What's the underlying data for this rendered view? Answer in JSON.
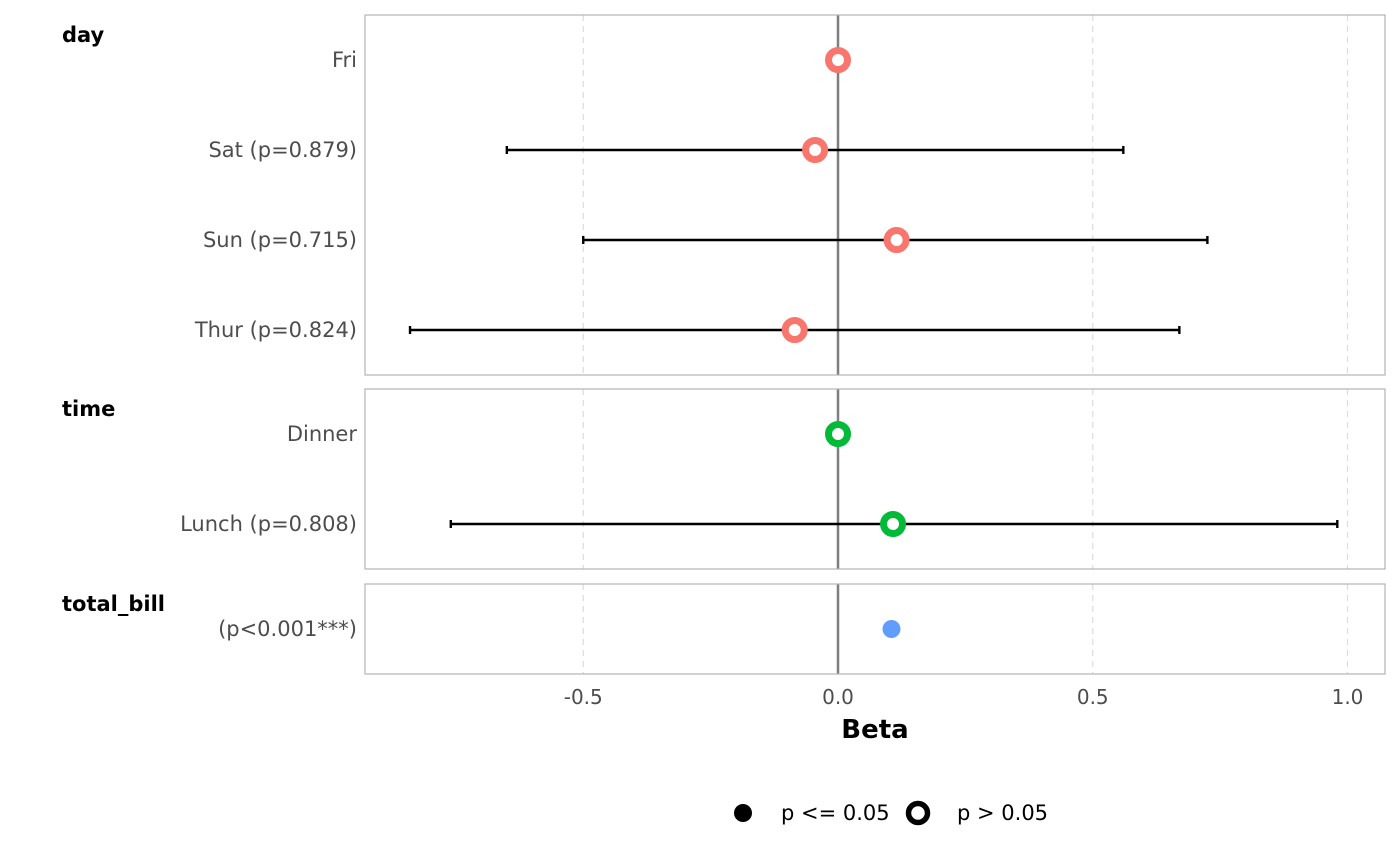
{
  "chart_data": {
    "type": "forest",
    "xlabel": "Beta",
    "xlim": [
      -0.93,
      1.07
    ],
    "x_ticks": [
      {
        "value": -0.5,
        "label": "-0.5"
      },
      {
        "value": 0.0,
        "label": "0.0"
      },
      {
        "value": 0.5,
        "label": "0.5"
      },
      {
        "value": 1.0,
        "label": "1.0"
      }
    ],
    "reference_line": 0,
    "grid": "vertical dashed",
    "groups": [
      {
        "name": "day",
        "color": "#F8766D",
        "rows": [
          {
            "label": "Fri",
            "estimate": 0.0,
            "ci_low": null,
            "ci_high": null,
            "significant": false
          },
          {
            "label": "Sat (p=0.879)",
            "estimate": -0.045,
            "ci_low": -0.65,
            "ci_high": 0.56,
            "significant": false
          },
          {
            "label": "Sun (p=0.715)",
            "estimate": 0.115,
            "ci_low": -0.5,
            "ci_high": 0.725,
            "significant": false
          },
          {
            "label": "Thur (p=0.824)",
            "estimate": -0.085,
            "ci_low": -0.84,
            "ci_high": 0.67,
            "significant": false
          }
        ]
      },
      {
        "name": "time",
        "color": "#00BA38",
        "rows": [
          {
            "label": "Dinner",
            "estimate": 0.0,
            "ci_low": null,
            "ci_high": null,
            "significant": false
          },
          {
            "label": "Lunch (p=0.808)",
            "estimate": 0.108,
            "ci_low": -0.76,
            "ci_high": 0.98,
            "significant": false
          }
        ]
      },
      {
        "name": "total_bill",
        "color": "#619CFF",
        "rows": [
          {
            "label": "(p<0.001***)",
            "estimate": 0.105,
            "ci_low": 0.1,
            "ci_high": 0.11,
            "significant": true
          }
        ]
      }
    ],
    "legend": {
      "position": "bottom",
      "items": [
        {
          "label": "p <= 0.05",
          "symbol": "filled"
        },
        {
          "label": "p > 0.05",
          "symbol": "hollow"
        }
      ]
    }
  }
}
